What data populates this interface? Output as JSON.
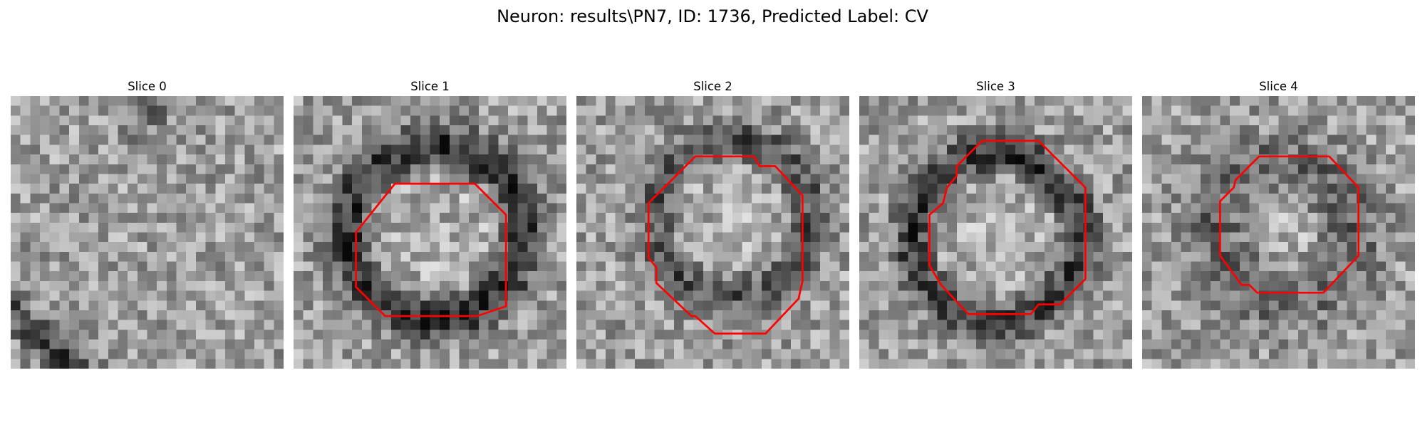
{
  "figure": {
    "title": "Neuron: results\\PN7, ID: 1736, Predicted Label: CV"
  },
  "contour_color": "#ff0000",
  "colormap": "gray",
  "grid_size": 28,
  "slices": [
    {
      "title": "Slice 0",
      "dark_ring": null,
      "contour": null,
      "dark_band": true
    },
    {
      "title": "Slice 1",
      "dark_ring": {
        "cx": 14.5,
        "cy": 14.0,
        "r": 9.0,
        "w": 2.2,
        "depth": 0.42
      },
      "contour": [
        [
          10.4,
          9.0
        ],
        [
          18.6,
          9.0
        ],
        [
          21.8,
          12.2
        ],
        [
          21.8,
          21.6
        ],
        [
          18.8,
          22.6
        ],
        [
          9.4,
          22.6
        ],
        [
          6.4,
          19.6
        ],
        [
          6.4,
          14.0
        ]
      ]
    },
    {
      "title": "Slice 2",
      "dark_ring": {
        "cx": 16.0,
        "cy": 12.5,
        "r": 8.0,
        "w": 2.0,
        "depth": 0.3
      },
      "contour": [
        [
          12.2,
          6.2
        ],
        [
          18.2,
          6.2
        ],
        [
          18.8,
          7.2
        ],
        [
          20.4,
          7.2
        ],
        [
          23.2,
          10.2
        ],
        [
          23.2,
          19.0
        ],
        [
          22.8,
          20.8
        ],
        [
          19.4,
          24.4
        ],
        [
          14.2,
          24.4
        ],
        [
          12.2,
          22.6
        ],
        [
          11.8,
          22.6
        ],
        [
          8.2,
          19.2
        ],
        [
          8.2,
          17.6
        ],
        [
          7.4,
          16.6
        ],
        [
          7.4,
          11.0
        ]
      ]
    },
    {
      "title": "Slice 3",
      "dark_ring": {
        "cx": 14.0,
        "cy": 14.5,
        "r": 8.6,
        "w": 2.0,
        "depth": 0.4
      },
      "contour": [
        [
          12.6,
          4.6
        ],
        [
          18.4,
          4.6
        ],
        [
          23.2,
          9.4
        ],
        [
          23.2,
          18.8
        ],
        [
          20.6,
          21.4
        ],
        [
          18.4,
          21.4
        ],
        [
          17.6,
          22.4
        ],
        [
          11.2,
          22.4
        ],
        [
          8.4,
          19.4
        ],
        [
          7.2,
          17.4
        ],
        [
          7.2,
          12.2
        ],
        [
          8.6,
          11.0
        ],
        [
          9.0,
          9.4
        ],
        [
          10.0,
          8.2
        ],
        [
          10.0,
          7.2
        ]
      ]
    },
    {
      "title": "Slice 4",
      "dark_ring": {
        "cx": 14.5,
        "cy": 14.0,
        "r": 7.0,
        "w": 3.2,
        "depth": 0.22
      },
      "contour": [
        [
          12.0,
          6.2
        ],
        [
          19.2,
          6.2
        ],
        [
          22.2,
          9.4
        ],
        [
          22.2,
          16.4
        ],
        [
          18.6,
          20.2
        ],
        [
          11.8,
          20.2
        ],
        [
          11.0,
          19.4
        ],
        [
          10.2,
          19.4
        ],
        [
          8.0,
          16.4
        ],
        [
          8.0,
          10.8
        ],
        [
          9.4,
          9.4
        ],
        [
          9.6,
          8.6
        ]
      ]
    }
  ]
}
